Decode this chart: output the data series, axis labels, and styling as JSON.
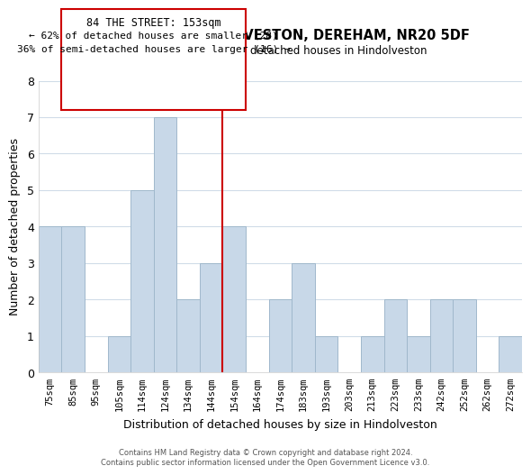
{
  "title": "84, THE STREET, HINDOLVESTON, DEREHAM, NR20 5DF",
  "subtitle": "Size of property relative to detached houses in Hindolveston",
  "xlabel": "Distribution of detached houses by size in Hindolveston",
  "ylabel": "Number of detached properties",
  "categories": [
    "75sqm",
    "85sqm",
    "95sqm",
    "105sqm",
    "114sqm",
    "124sqm",
    "134sqm",
    "144sqm",
    "154sqm",
    "164sqm",
    "174sqm",
    "183sqm",
    "193sqm",
    "203sqm",
    "213sqm",
    "223sqm",
    "233sqm",
    "242sqm",
    "252sqm",
    "262sqm",
    "272sqm"
  ],
  "values": [
    4,
    4,
    0,
    1,
    5,
    7,
    2,
    3,
    4,
    0,
    2,
    3,
    1,
    0,
    1,
    2,
    1,
    2,
    2,
    0,
    1
  ],
  "bar_color": "#c8d8e8",
  "bar_edgecolor": "#a0b8cc",
  "highlight_line_color": "#cc0000",
  "highlight_line_index": 8,
  "ylim": [
    0,
    8
  ],
  "yticks": [
    0,
    1,
    2,
    3,
    4,
    5,
    6,
    7,
    8
  ],
  "annotation_title": "84 THE STREET: 153sqm",
  "annotation_line1": "← 62% of detached houses are smaller (28)",
  "annotation_line2": "36% of semi-detached houses are larger (16) →",
  "annotation_box_color": "#ffffff",
  "annotation_box_edgecolor": "#cc0000",
  "footer_line1": "Contains HM Land Registry data © Crown copyright and database right 2024.",
  "footer_line2": "Contains public sector information licensed under the Open Government Licence v3.0.",
  "background_color": "#ffffff",
  "grid_color": "#d0dce8"
}
